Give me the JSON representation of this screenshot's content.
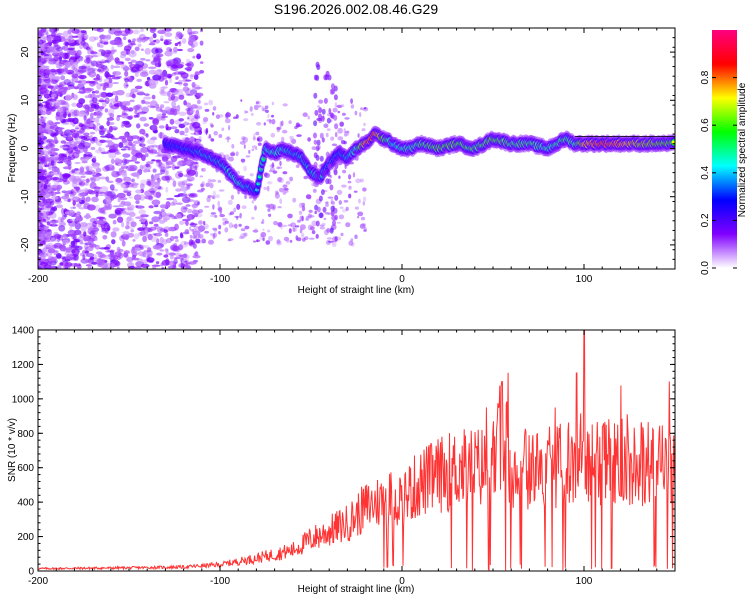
{
  "chart_data": [
    {
      "type": "heatmap",
      "title": "S196.2026.002.08.46.G29",
      "xlabel": "Height of straight line (km)",
      "ylabel": "Frequency (Hz)",
      "xlim": [
        -200,
        150
      ],
      "ylim": [
        -25,
        25
      ],
      "xticks": [
        -200,
        -100,
        0,
        100
      ],
      "yticks": [
        -20,
        -10,
        0,
        10,
        20
      ],
      "colorbar": {
        "label": "Normalized spectral amplitude",
        "range": [
          0,
          1
        ],
        "ticks": [
          "0.0",
          "0.2",
          "0.4",
          "0.6",
          "0.8"
        ],
        "colors": [
          "#ffffff",
          "#8000ff",
          "#0000ff",
          "#00ffff",
          "#00ff00",
          "#ffff00",
          "#ff0000",
          "#ff0080"
        ]
      },
      "ridge": {
        "x": [
          -130,
          -120,
          -110,
          -100,
          -95,
          -90,
          -85,
          -80,
          -75,
          -70,
          -65,
          -60,
          -55,
          -50,
          -45,
          -40,
          -35,
          -30,
          -25,
          -20,
          -15,
          -10,
          -5,
          0,
          5,
          10,
          20,
          30,
          40,
          50,
          60,
          70,
          80,
          90,
          95,
          100,
          110,
          120,
          130,
          140,
          150
        ],
        "freq": [
          1,
          0,
          -1,
          -3,
          -5,
          -7,
          -8,
          -9,
          0,
          -1,
          0,
          -1,
          -2,
          -5,
          -6,
          -3,
          -1,
          -2,
          0,
          1,
          3,
          2,
          1,
          0,
          0,
          1,
          0,
          1,
          0,
          2,
          1,
          1,
          0,
          2,
          1,
          1,
          1,
          1,
          1,
          1,
          1
        ],
        "amplitude": [
          0.3,
          0.4,
          0.5,
          0.5,
          0.55,
          0.6,
          0.5,
          0.45,
          0.55,
          0.6,
          0.55,
          0.5,
          0.5,
          0.5,
          0.55,
          0.4,
          0.45,
          0.5,
          0.6,
          0.9,
          0.95,
          0.7,
          0.55,
          0.6,
          0.6,
          0.65,
          0.7,
          0.7,
          0.65,
          0.7,
          0.65,
          0.65,
          0.6,
          0.65,
          0.6,
          0.85,
          0.95,
          0.9,
          0.8,
          0.75,
          0.7
        ]
      }
    },
    {
      "type": "line",
      "xlabel": "Height of straight line (km)",
      "ylabel": "SNR (10 * v/v)",
      "xlim": [
        -200,
        150
      ],
      "ylim": [
        0,
        1400
      ],
      "xticks": [
        -200,
        -100,
        0,
        100
      ],
      "yticks": [
        0,
        200,
        400,
        600,
        800,
        1000,
        1200,
        1400
      ],
      "color": "#ff3333",
      "series": [
        {
          "name": "SNR",
          "x": [
            -200,
            -150,
            -120,
            -100,
            -80,
            -60,
            -50,
            -40,
            -30,
            -25,
            -20,
            -10,
            0,
            10,
            20,
            30,
            40,
            50,
            55,
            60,
            70,
            80,
            90,
            100,
            110,
            120,
            130,
            140,
            150
          ],
          "y": [
            15,
            20,
            25,
            40,
            80,
            130,
            200,
            250,
            300,
            350,
            400,
            450,
            460,
            550,
            600,
            640,
            650,
            660,
            900,
            650,
            640,
            650,
            680,
            700,
            680,
            690,
            680,
            690,
            700
          ],
          "spikes": [
            {
              "x": 55,
              "y": 1100
            },
            {
              "x": 96,
              "y": 1150
            },
            {
              "x": 100,
              "y": 1400
            }
          ]
        }
      ]
    }
  ]
}
